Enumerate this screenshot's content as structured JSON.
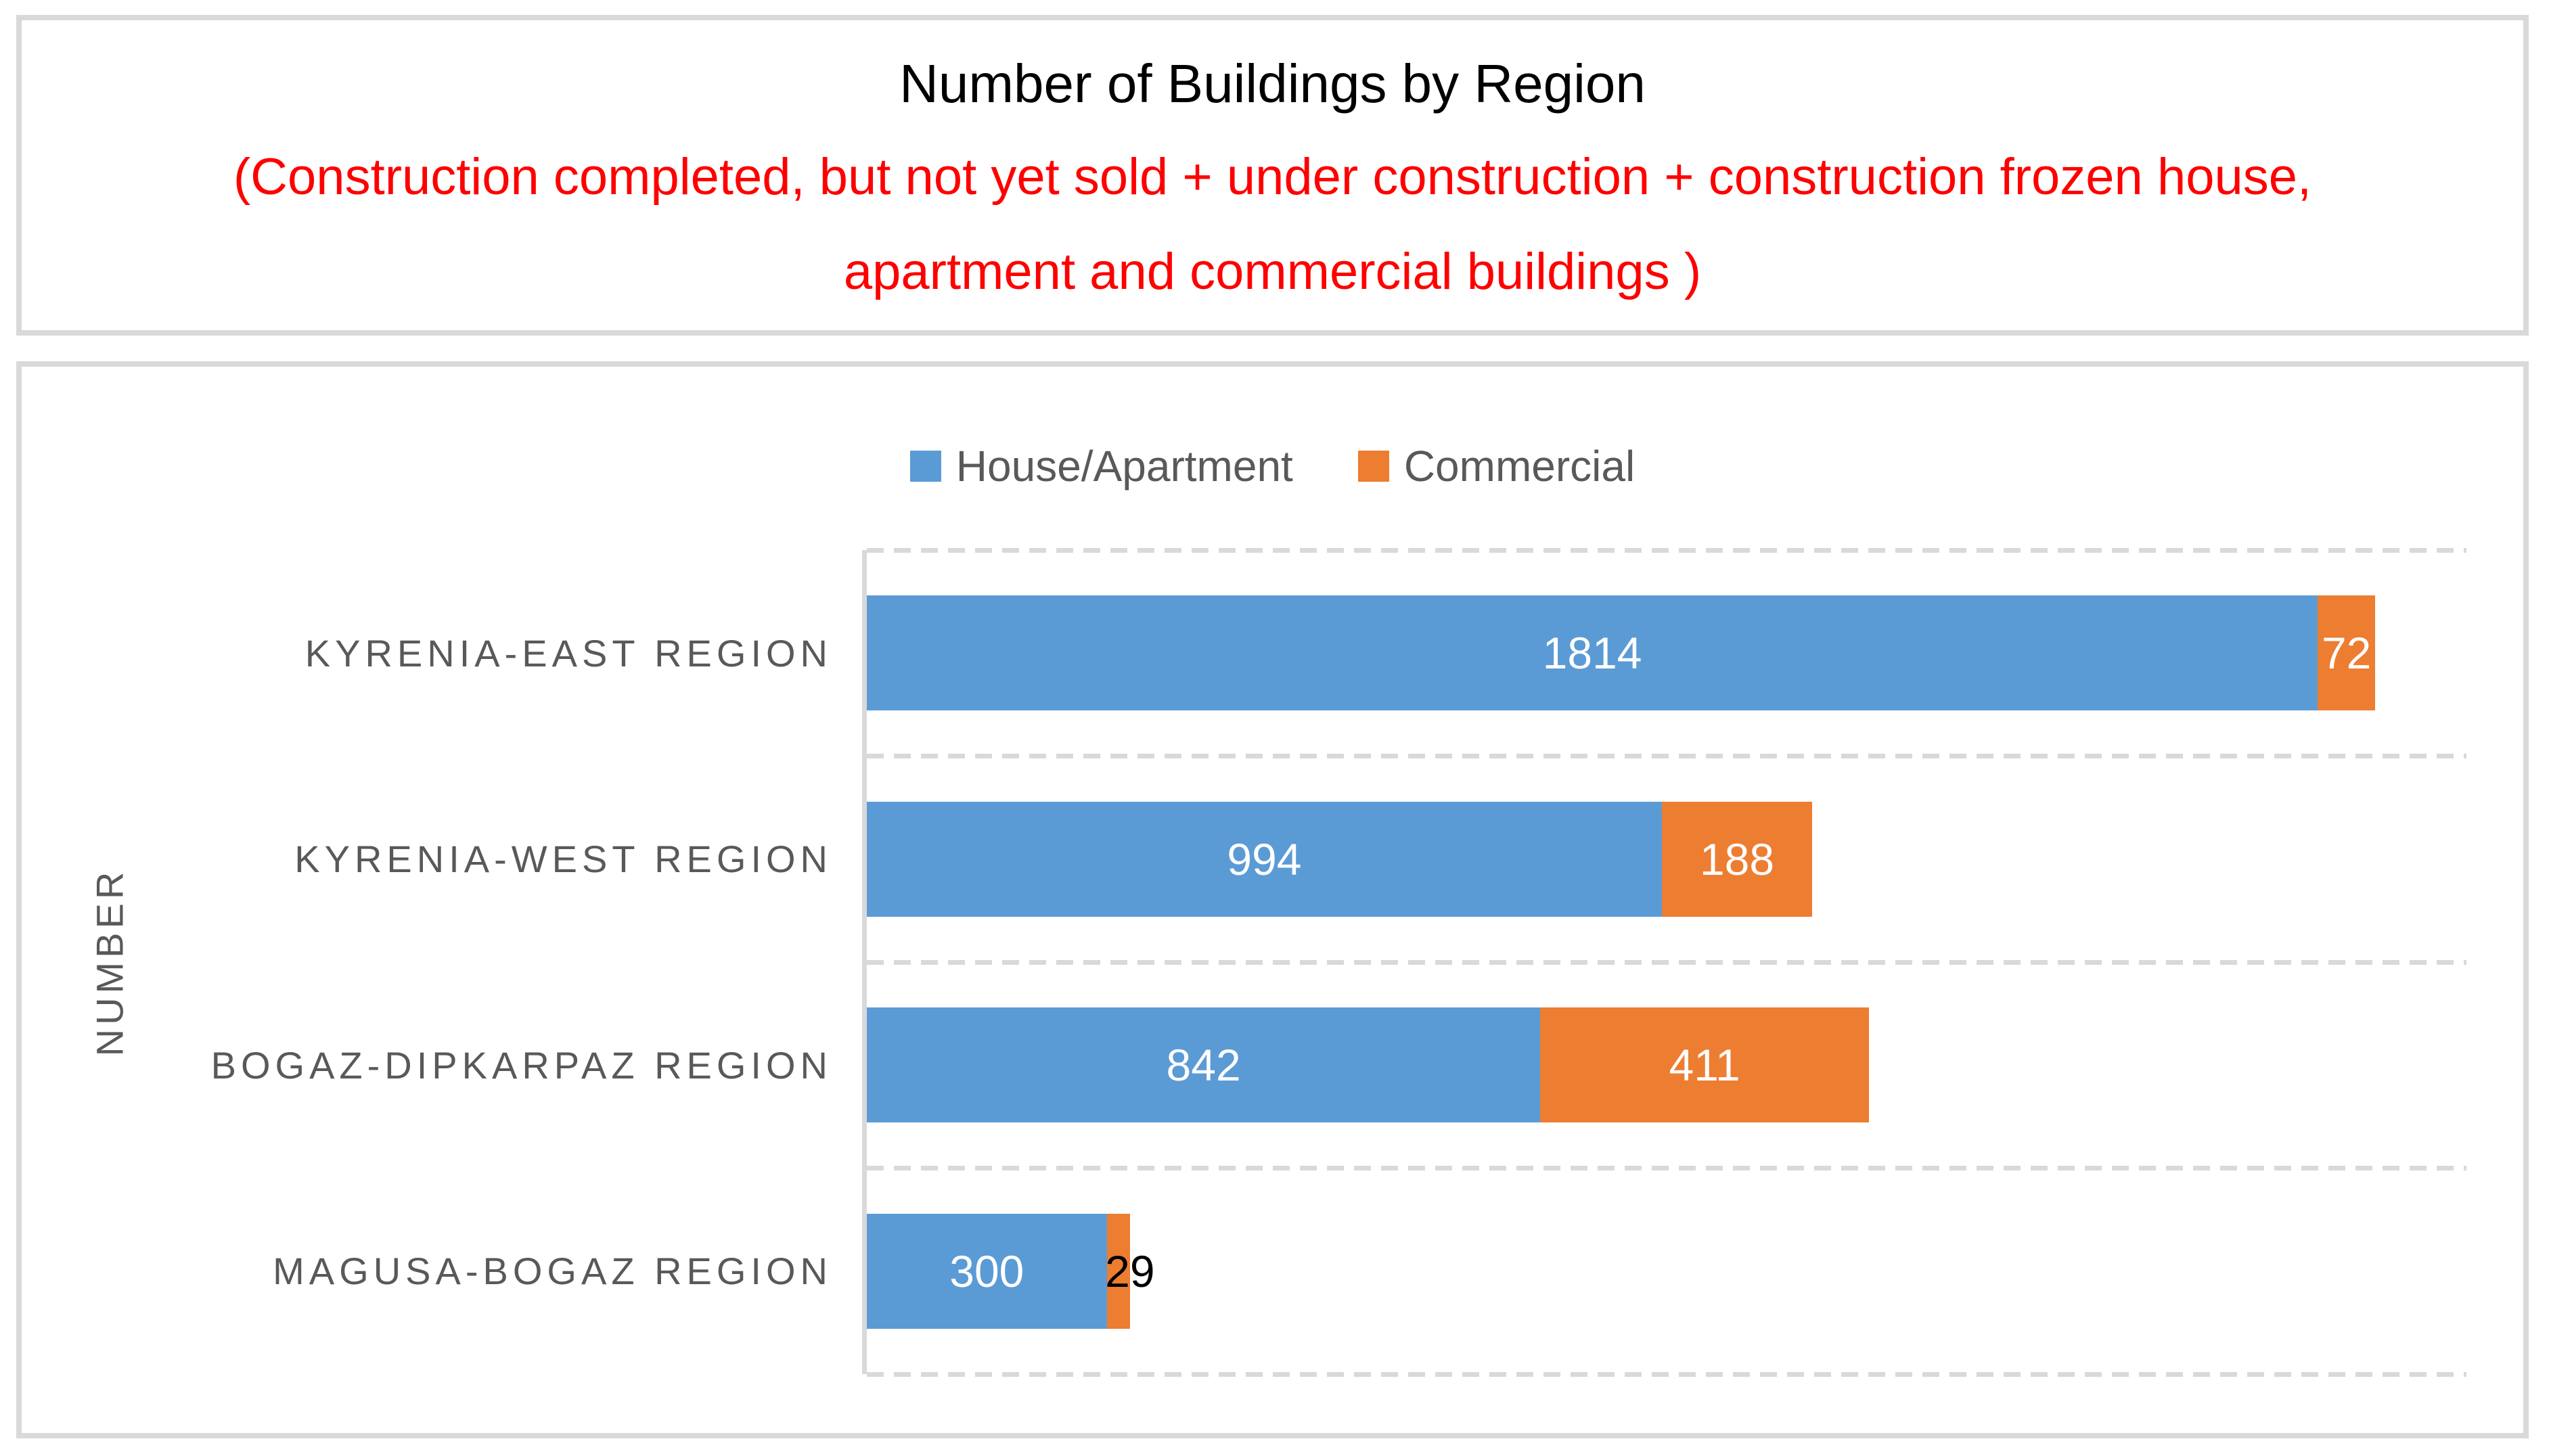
{
  "title_box": {
    "title": "Number of Buildings by Region",
    "subtitle_line1": "(Construction completed, but not yet sold + under construction + construction frozen house,",
    "subtitle_line2": "apartment and commercial buildings )",
    "title_color": "#000000",
    "subtitle_color": "#FF0000"
  },
  "chart_data": {
    "type": "bar",
    "orientation": "horizontal",
    "stacked": true,
    "title": "Number of Buildings by Region",
    "categories": [
      "KYRENIA-EAST REGION",
      "KYRENIA-WEST REGION",
      "BOGAZ-DIPKARPAZ REGION",
      "MAGUSA-BOGAZ REGION"
    ],
    "series": [
      {
        "name": "House/Apartment",
        "color": "#5B9BD5",
        "values": [
          1814,
          994,
          842,
          300
        ]
      },
      {
        "name": "Commercial",
        "color": "#ED7D31",
        "values": [
          72,
          188,
          411,
          29
        ]
      }
    ],
    "ylabel": "NUMBER",
    "xlabel": "",
    "xlim": [
      0,
      2000
    ],
    "value_axis_visible": false,
    "grid": "dashed horizontal band lines",
    "legend_position": "top",
    "data_labels": true
  },
  "colors": {
    "grid": "#D9D9D9",
    "box_border": "#D9D9D9",
    "axis_text": "#595959",
    "bar_label_inside": "#FFFFFF",
    "bar_label_outside": "#000000"
  }
}
